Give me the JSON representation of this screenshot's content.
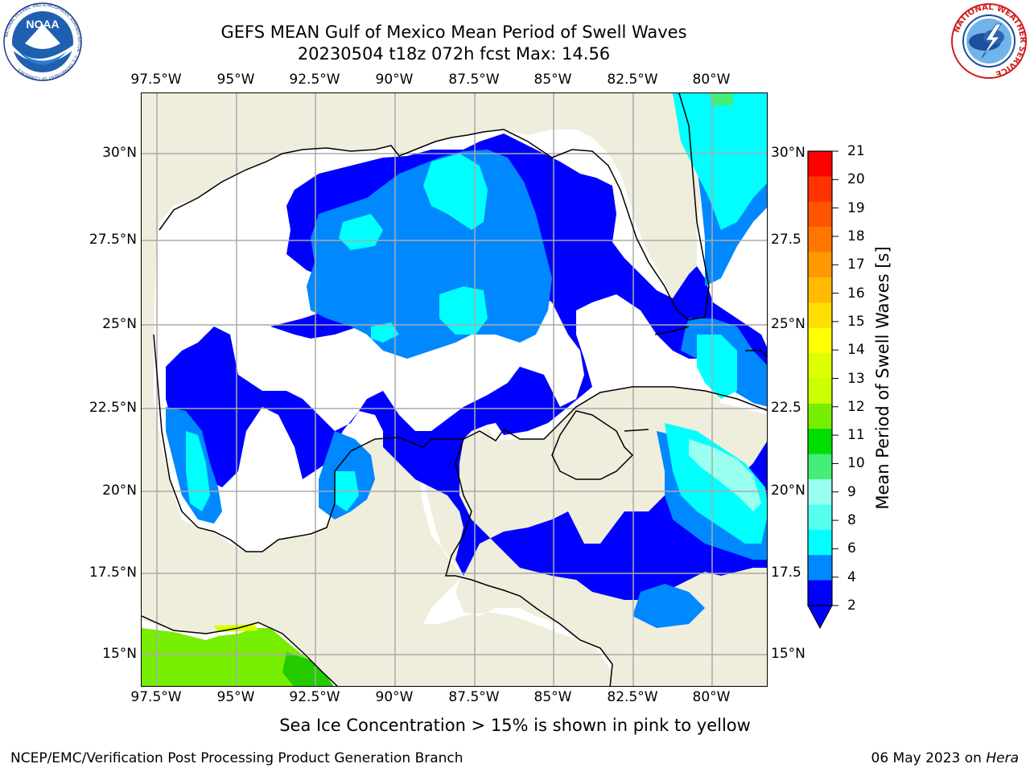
{
  "header": {
    "title_line1": "GEFS MEAN Gulf of Mexico Mean Period of Swell Waves",
    "title_line2": "20230504 t18z 072h fcst   Max: 14.56"
  },
  "logos": {
    "left": {
      "name": "noaa-logo",
      "text": "NOAA",
      "ring_text": "NATIONAL OCEANIC AND ATMOSPHERIC ADMINISTRATION · U.S. DEPARTMENT OF COMMERCE"
    },
    "right": {
      "name": "nws-logo",
      "ring_text": "NATIONAL WEATHER SERVICE"
    }
  },
  "map": {
    "lon_labels": [
      "97.5°W",
      "95°W",
      "92.5°W",
      "90°W",
      "87.5°W",
      "85°W",
      "82.5°W",
      "80°W"
    ],
    "lat_labels_left": [
      "30°N",
      "27.5°N",
      "25°N",
      "22.5°N",
      "20°N",
      "17.5°N",
      "15°N"
    ],
    "lat_labels_right": [
      "30°N",
      "27.5",
      "25°N",
      "22.5",
      "20°N",
      "17.5",
      "15°N"
    ],
    "colors": {
      "land": "#efeddc",
      "grid": "#aaaaaa",
      "coast": "#000000"
    }
  },
  "colorbar": {
    "title": "Mean Period of Swell Waves [s]",
    "tick_labels": [
      "21",
      "20",
      "19",
      "18",
      "17",
      "16",
      "15",
      "14",
      "13",
      "12",
      "11",
      "10",
      "9",
      "8",
      "6",
      "4",
      "2"
    ],
    "colors_top_to_bottom": [
      "#ff0000",
      "#ff3300",
      "#ff5500",
      "#ff7700",
      "#ff9900",
      "#ffbb00",
      "#ffdd00",
      "#ffff00",
      "#ddff00",
      "#ccff00",
      "#77ee00",
      "#00dd00",
      "#44ee77",
      "#99ffee",
      "#55ffee",
      "#00ffff",
      "#0088ff",
      "#0000ff"
    ],
    "extend_color": "#0000ff"
  },
  "footer": {
    "note": "Sea Ice Concentration > 15% is shown in pink to yellow",
    "left": "NCEP/EMC/Verification Post Processing Product Generation Branch",
    "right_prefix": "06 May 2023 on ",
    "right_italic": "Hera"
  }
}
